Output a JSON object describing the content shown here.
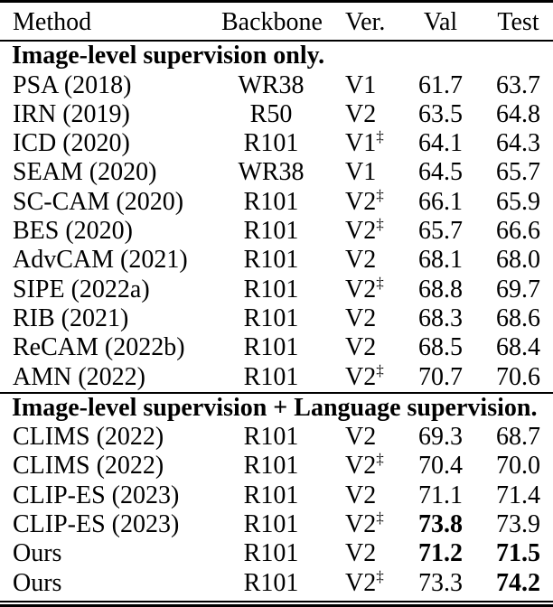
{
  "page": {
    "background_color": "#ffffff",
    "text_color": "#000000"
  },
  "table": {
    "columns": [
      {
        "label": "Method",
        "align": "left"
      },
      {
        "label": "Backbone",
        "align": "center"
      },
      {
        "label": "Ver.",
        "align": "left"
      },
      {
        "label": "Val",
        "align": "center"
      },
      {
        "label": "Test",
        "align": "center"
      }
    ],
    "dagger_symbol": "‡",
    "sections": [
      {
        "header": "Image-level supervision only.",
        "rows": [
          {
            "method": "PSA (2018)",
            "backbone": "WR38",
            "ver": "V1",
            "dagger": false,
            "val": "61.7",
            "test": "63.7",
            "val_bold": false,
            "test_bold": false
          },
          {
            "method": "IRN (2019)",
            "backbone": "R50",
            "ver": "V2",
            "dagger": false,
            "val": "63.5",
            "test": "64.8",
            "val_bold": false,
            "test_bold": false
          },
          {
            "method": "ICD (2020)",
            "backbone": "R101",
            "ver": "V1",
            "dagger": true,
            "val": "64.1",
            "test": "64.3",
            "val_bold": false,
            "test_bold": false
          },
          {
            "method": "SEAM (2020)",
            "backbone": "WR38",
            "ver": "V1",
            "dagger": false,
            "val": "64.5",
            "test": "65.7",
            "val_bold": false,
            "test_bold": false
          },
          {
            "method": "SC-CAM (2020)",
            "backbone": "R101",
            "ver": "V2",
            "dagger": true,
            "val": "66.1",
            "test": "65.9",
            "val_bold": false,
            "test_bold": false
          },
          {
            "method": "BES (2020)",
            "backbone": "R101",
            "ver": "V2",
            "dagger": true,
            "val": "65.7",
            "test": "66.6",
            "val_bold": false,
            "test_bold": false
          },
          {
            "method": "AdvCAM (2021)",
            "backbone": "R101",
            "ver": "V2",
            "dagger": false,
            "val": "68.1",
            "test": "68.0",
            "val_bold": false,
            "test_bold": false
          },
          {
            "method": "SIPE (2022a)",
            "backbone": "R101",
            "ver": "V2",
            "dagger": true,
            "val": "68.8",
            "test": "69.7",
            "val_bold": false,
            "test_bold": false
          },
          {
            "method": "RIB (2021)",
            "backbone": "R101",
            "ver": "V2",
            "dagger": false,
            "val": "68.3",
            "test": "68.6",
            "val_bold": false,
            "test_bold": false
          },
          {
            "method": "ReCAM (2022b)",
            "backbone": "R101",
            "ver": "V2",
            "dagger": false,
            "val": "68.5",
            "test": "68.4",
            "val_bold": false,
            "test_bold": false
          },
          {
            "method": "AMN (2022)",
            "backbone": "R101",
            "ver": "V2",
            "dagger": true,
            "val": "70.7",
            "test": "70.6",
            "val_bold": false,
            "test_bold": false
          }
        ]
      },
      {
        "header": "Image-level supervision + Language supervision.",
        "rows": [
          {
            "method": "CLIMS (2022)",
            "backbone": "R101",
            "ver": "V2",
            "dagger": false,
            "val": "69.3",
            "test": "68.7",
            "val_bold": false,
            "test_bold": false
          },
          {
            "method": "CLIMS (2022)",
            "backbone": "R101",
            "ver": "V2",
            "dagger": true,
            "val": "70.4",
            "test": "70.0",
            "val_bold": false,
            "test_bold": false
          },
          {
            "method": "CLIP-ES (2023)",
            "backbone": "R101",
            "ver": "V2",
            "dagger": false,
            "val": "71.1",
            "test": "71.4",
            "val_bold": false,
            "test_bold": false
          },
          {
            "method": "CLIP-ES (2023)",
            "backbone": "R101",
            "ver": "V2",
            "dagger": true,
            "val": "73.8",
            "test": "73.9",
            "val_bold": true,
            "test_bold": false
          },
          {
            "method": "Ours",
            "backbone": "R101",
            "ver": "V2",
            "dagger": false,
            "val": "71.2",
            "test": "71.5",
            "val_bold": true,
            "test_bold": true
          },
          {
            "method": "Ours",
            "backbone": "R101",
            "ver": "V2",
            "dagger": true,
            "val": "73.3",
            "test": "74.2",
            "val_bold": false,
            "test_bold": true
          }
        ]
      }
    ]
  }
}
